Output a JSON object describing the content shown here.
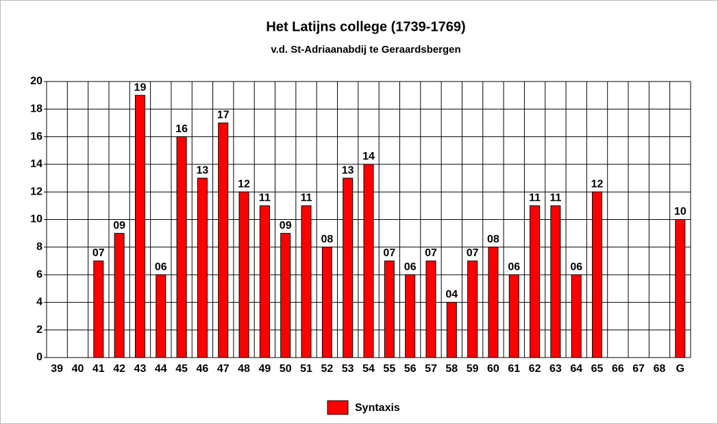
{
  "chart_data": {
    "type": "bar",
    "title": "Het Latijns college (1739-1769)",
    "subtitle": "v.d. St-Adriaanabdij te Geraardsbergen",
    "categories": [
      "39",
      "40",
      "41",
      "42",
      "43",
      "44",
      "45",
      "46",
      "47",
      "48",
      "49",
      "50",
      "51",
      "52",
      "53",
      "54",
      "55",
      "56",
      "57",
      "58",
      "59",
      "60",
      "61",
      "62",
      "63",
      "64",
      "65",
      "66",
      "67",
      "68",
      "G"
    ],
    "series": [
      {
        "name": "Syntaxis",
        "color": "#ff0000",
        "values": [
          null,
          null,
          7,
          9,
          19,
          6,
          16,
          13,
          17,
          12,
          11,
          9,
          11,
          8,
          13,
          14,
          7,
          6,
          7,
          4,
          7,
          8,
          6,
          11,
          11,
          6,
          12,
          null,
          null,
          null,
          10
        ],
        "value_labels": [
          null,
          null,
          "07",
          "09",
          "19",
          "06",
          "16",
          "13",
          "17",
          "12",
          "11",
          "09",
          "11",
          "08",
          "13",
          "14",
          "07",
          "06",
          "07",
          "04",
          "07",
          "08",
          "06",
          "11",
          "11",
          "06",
          "12",
          null,
          null,
          null,
          "10"
        ]
      }
    ],
    "ylim": [
      0,
      20
    ],
    "yticks": [
      0,
      2,
      4,
      6,
      8,
      10,
      12,
      14,
      16,
      18,
      20
    ],
    "grid": true,
    "legend": "bottom"
  }
}
